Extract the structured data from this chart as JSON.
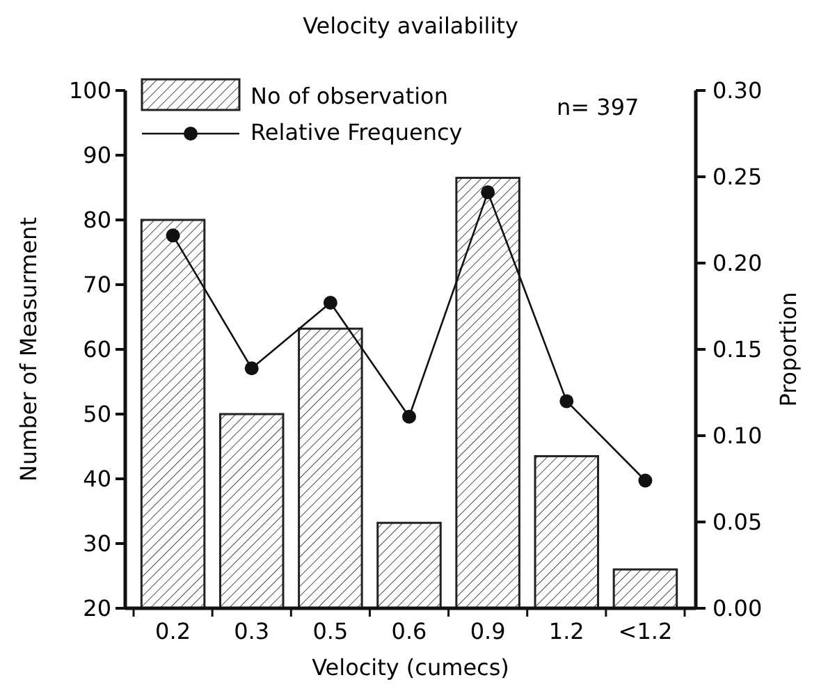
{
  "chart_data": {
    "type": "bar",
    "title": "Velocity availability",
    "xlabel": "Velocity (cumecs)",
    "ylabel": "Number of Measurment",
    "y2label": "Proportion",
    "categories": [
      "0.2",
      "0.3",
      "0.5",
      "0.6",
      "0.9",
      "1.2",
      "<1.2"
    ],
    "series": [
      {
        "name": "No of observation",
        "color": "#222222",
        "values": [
          80,
          50,
          63.2,
          33.2,
          86.5,
          43.5,
          26
        ]
      },
      {
        "name": "Relative Frequency",
        "type": "line",
        "axis": "y2",
        "color": "#111111",
        "marker": "circle",
        "values": [
          0.216,
          0.139,
          0.177,
          0.111,
          0.241,
          0.12,
          0.074
        ]
      }
    ],
    "ylim": [
      20,
      100
    ],
    "yticks": [
      20,
      30,
      40,
      50,
      60,
      70,
      80,
      90,
      100
    ],
    "y2lim": [
      0,
      0.3
    ],
    "y2ticks": [
      {
        "value": 0,
        "label": "0.00"
      },
      {
        "value": 0.05,
        "label": "0.05"
      },
      {
        "value": 0.1,
        "label": "0.10"
      },
      {
        "value": 0.15,
        "label": "0.15"
      },
      {
        "value": 0.2,
        "label": "0.20"
      },
      {
        "value": 0.25,
        "label": "0.25"
      },
      {
        "value": 0.3,
        "label": "0.30"
      }
    ],
    "annotations": [
      "n= 397"
    ],
    "legend": "top left",
    "grid": false
  }
}
